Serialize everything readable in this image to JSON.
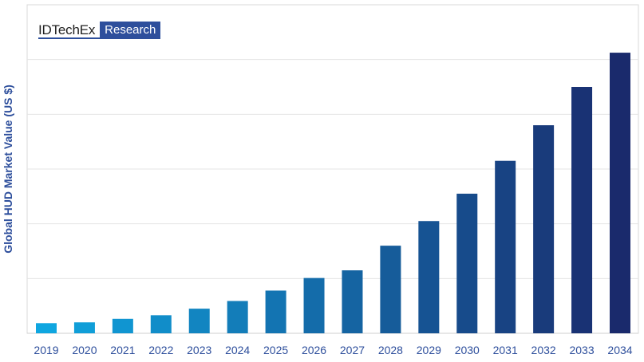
{
  "logo": {
    "name": "IDTechEx",
    "badge": "Research"
  },
  "colors": {
    "bar_start": "#0fa6e0",
    "bar_end": "#1a2a6c",
    "grid": "#e4e4e4",
    "axis_text": "#2e4f9c",
    "logo_badge": "#2e4f9c"
  },
  "chart_data": {
    "type": "bar",
    "title": "",
    "xlabel": "",
    "ylabel": "Global HUD Market Value (US $)",
    "categories": [
      "2019",
      "2020",
      "2021",
      "2022",
      "2023",
      "2024",
      "2025",
      "2026",
      "2027",
      "2028",
      "2029",
      "2030",
      "2031",
      "2032",
      "2033",
      "2034"
    ],
    "values": [
      0.37,
      0.4,
      0.53,
      0.66,
      0.9,
      1.18,
      1.56,
      2.02,
      2.3,
      3.2,
      4.1,
      5.1,
      6.3,
      7.6,
      9.0,
      10.25
    ],
    "ylim": [
      0,
      12
    ],
    "y_tick_labels_shown": false,
    "grid": true,
    "legend": "none"
  }
}
